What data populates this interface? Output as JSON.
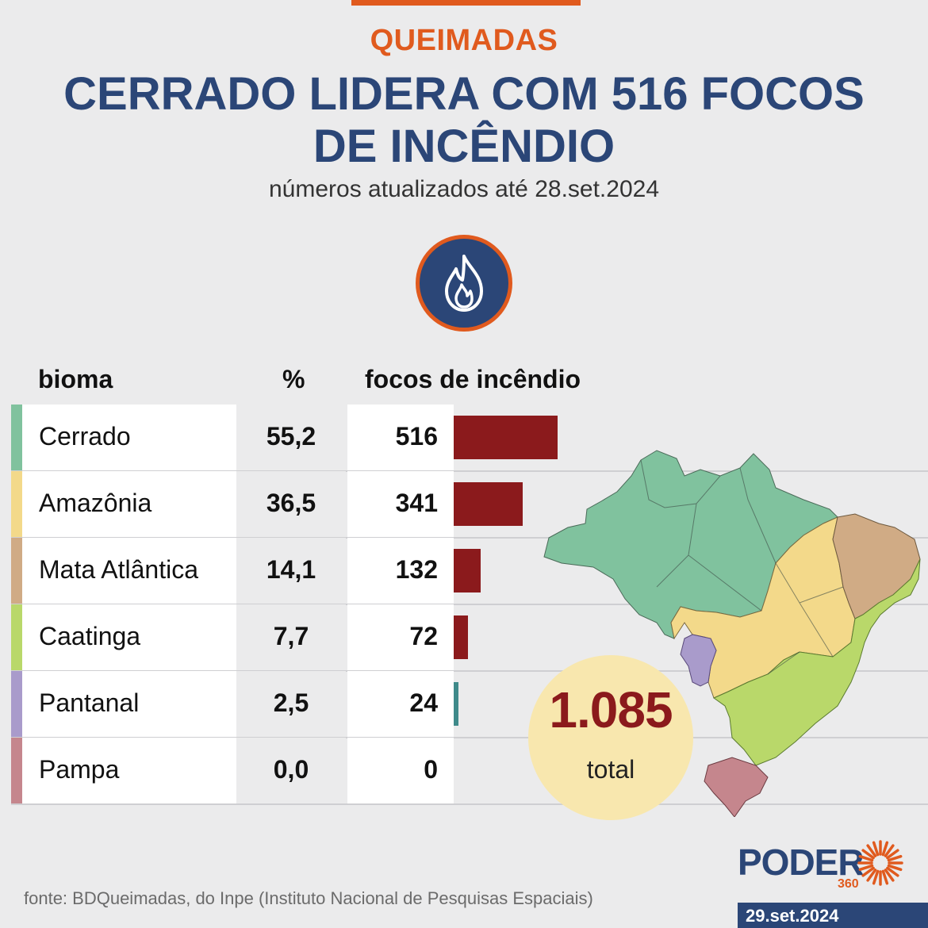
{
  "header": {
    "kicker": "QUEIMADAS",
    "title": "CERRADO LIDERA COM 516 FOCOS DE INCÊNDIO",
    "subtitle": "números atualizados até 28.set.2024"
  },
  "icon": "fire-icon",
  "table": {
    "col_bioma": "bioma",
    "col_pct": "%",
    "col_focos": "focos de incêndio"
  },
  "chart_data": {
    "type": "bar",
    "categories": [
      "Cerrado",
      "Amazônia",
      "Mata Atlântica",
      "Caatinga",
      "Pantanal",
      "Pampa"
    ],
    "percentages": [
      "55,2",
      "36,5",
      "14,1",
      "7,7",
      "2,5",
      "0,0"
    ],
    "values": [
      516,
      341,
      132,
      72,
      24,
      0
    ],
    "value_labels": [
      "516",
      "341",
      "132",
      "72",
      "24",
      "0"
    ],
    "biome_colors": [
      "#80c29e",
      "#f3d98a",
      "#d0ab85",
      "#b9d86a",
      "#a99bcb",
      "#c5868d"
    ],
    "bar_colors": [
      "#8b1a1c",
      "#8b1a1c",
      "#8b1a1c",
      "#8b1a1c",
      "#3f8a8a",
      "#8b1a1c"
    ],
    "xlim": [
      0,
      516
    ]
  },
  "total": {
    "value": "1.085",
    "label": "total"
  },
  "footer": {
    "source": "fonte: BDQueimadas, do Inpe (Instituto Nacional de Pesquisas Espaciais)",
    "brand": "PODER",
    "brand_suffix": "360",
    "date": "29.set.2024"
  },
  "colors": {
    "accent": "#e05a1e",
    "navy": "#2b4677",
    "bar": "#8b1a1c",
    "background": "#ebebec"
  }
}
